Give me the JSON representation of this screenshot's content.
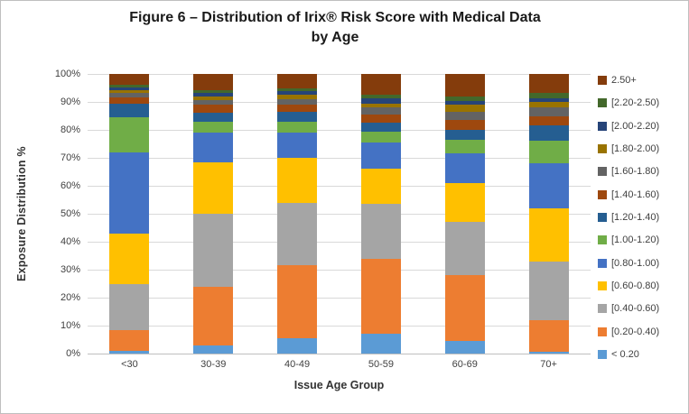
{
  "chart_data": {
    "type": "bar",
    "stacked": true,
    "percent_stacked": true,
    "title": "Figure 6 – Distribution of Irix® Risk Score with Medical Data by Age",
    "title_lines": [
      "Figure 6 – Distribution of Irix® Risk Score with Medical Data",
      "by Age"
    ],
    "xlabel": "Issue Age Group",
    "ylabel": "Exposure Distribution %",
    "ylim": [
      0,
      100
    ],
    "ytick_step": 10,
    "ytick_suffix": "%",
    "grid": true,
    "legend_position": "right",
    "legend_order": "reversed-top-is-last-series",
    "categories": [
      "<30",
      "30-39",
      "40-49",
      "50-59",
      "60-69",
      "70+"
    ],
    "series": [
      {
        "name": "< 0.20",
        "color": "#5B9BD5",
        "values": [
          1.0,
          3.0,
          5.5,
          7.0,
          4.5,
          0.5
        ]
      },
      {
        "name": "[0.20-0.40)",
        "color": "#ED7D31",
        "values": [
          7.5,
          21.0,
          26.0,
          27.0,
          23.5,
          11.5
        ]
      },
      {
        "name": "[0.40-0.60)",
        "color": "#A5A5A5",
        "values": [
          16.5,
          26.0,
          22.5,
          19.5,
          19.0,
          21.0
        ]
      },
      {
        "name": "[0.60-0.80)",
        "color": "#FFC000",
        "values": [
          18.0,
          18.5,
          16.0,
          12.5,
          14.0,
          19.0
        ]
      },
      {
        "name": "[0.80-1.00)",
        "color": "#4472C4",
        "values": [
          29.0,
          10.5,
          9.0,
          9.5,
          10.5,
          16.0
        ]
      },
      {
        "name": "[1.00-1.20)",
        "color": "#70AD47",
        "values": [
          12.5,
          4.0,
          4.0,
          4.0,
          5.0,
          8.0
        ]
      },
      {
        "name": "[1.20-1.40)",
        "color": "#255E91",
        "values": [
          5.0,
          3.2,
          3.5,
          3.0,
          3.5,
          5.5
        ]
      },
      {
        "name": "[1.40-1.60)",
        "color": "#9E480E",
        "values": [
          2.0,
          2.8,
          2.5,
          3.0,
          3.5,
          3.5
        ]
      },
      {
        "name": "[1.60-1.80)",
        "color": "#636363",
        "values": [
          1.6,
          1.8,
          2.0,
          2.5,
          3.0,
          3.0
        ]
      },
      {
        "name": "[1.80-2.00)",
        "color": "#997300",
        "values": [
          1.0,
          1.2,
          1.5,
          1.5,
          2.5,
          2.0
        ]
      },
      {
        "name": "[2.00-2.20)",
        "color": "#264478",
        "values": [
          1.0,
          1.3,
          1.3,
          1.7,
          1.5,
          1.2
        ]
      },
      {
        "name": "[2.20-2.50)",
        "color": "#43682B",
        "values": [
          1.0,
          1.0,
          1.0,
          1.5,
          1.6,
          2.0
        ]
      },
      {
        "name": "2.50+",
        "color": "#843C0C",
        "values": [
          3.9,
          5.7,
          5.2,
          7.3,
          7.9,
          6.8
        ]
      }
    ]
  }
}
